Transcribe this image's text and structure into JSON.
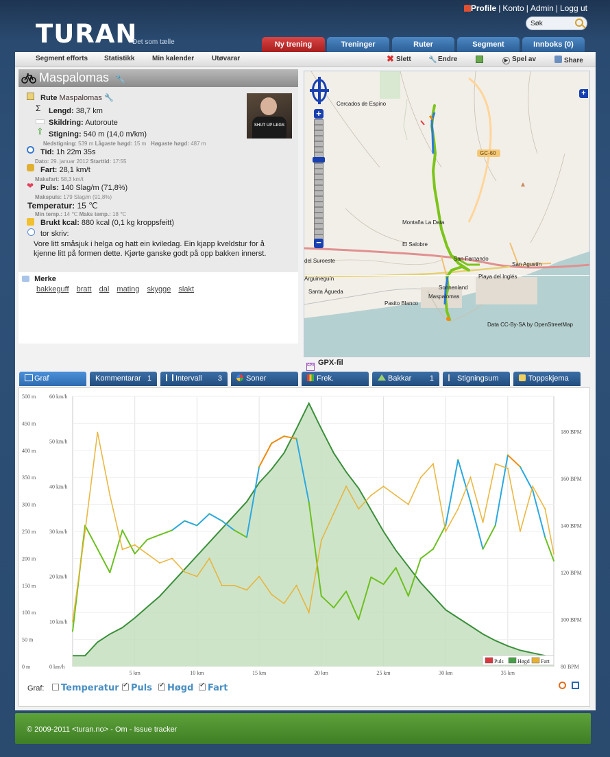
{
  "header": {
    "logo": "TURAN",
    "tagline": "Det som tælle",
    "links": [
      "Profile",
      "Konto",
      "Admin",
      "Logg ut"
    ],
    "search_placeholder": "Søk"
  },
  "main_tabs": [
    {
      "label": "Ny trening",
      "active": true
    },
    {
      "label": "Treninger",
      "active": false
    },
    {
      "label": "Ruter",
      "active": false
    },
    {
      "label": "Segment",
      "active": false
    },
    {
      "label": "Innboks (0)",
      "active": false
    }
  ],
  "subnav": {
    "items": [
      "Segment efforts",
      "Statistikk",
      "Min kalender",
      "Utøvarar"
    ],
    "actions": [
      "Slett",
      "Endre",
      "Spel av",
      "Share"
    ]
  },
  "workout": {
    "title": "Maspalomas",
    "route_label": "Rute",
    "route_name": "Maspalomas",
    "length_label": "Lengd:",
    "length": "38,7 km",
    "surface_label": "Skildring:",
    "surface": "Autoroute",
    "climb_label": "Stigning:",
    "climb": "540 m (14,0 m/km)",
    "climb_sub_label1": "Nedstigning:",
    "climb_sub_val1": "539 m",
    "climb_sub_label2": "Lågaste høgd:",
    "climb_sub_val2": "15 m",
    "climb_sub_label3": "Høgaste høgd:",
    "climb_sub_val3": "487 m",
    "time_label": "Tid:",
    "time": "1h 22m 35s",
    "date_label": "Dato:",
    "date": "29. januar 2012",
    "start_label": "Starttid:",
    "start": "17:55",
    "speed_label": "Fart:",
    "speed": "28,1 km/t",
    "maxspeed_label": "Maksfart:",
    "maxspeed": "58,3 km/t",
    "pulse_label": "Puls:",
    "pulse": "140 Slag/m (71,8%)",
    "maxpulse_label": "Makspuls:",
    "maxpulse": "179 Slag/m (91,8%)",
    "temp_label": "Temperatur:",
    "temp": "15 ℃",
    "mintemp_label": "Min temp.:",
    "mintemp": "14 ℃",
    "maxtemp_label": "Maks temp.:",
    "maxtemp": "18 ℃",
    "kcal_label": "Brukt kcal:",
    "kcal": "880 kcal (0,1 kg kroppsfeitt)",
    "author_line": "tor skriv:",
    "description": "Vore litt småsjuk i helga og hatt ein kviledag. Ein kjapp kveldstur for å kjenne litt på formen dette. Kjørte ganske godt på opp bakken innerst.",
    "avatar_shirt": "SHUT UP LEGS",
    "tags_label": "Merke",
    "tags": [
      "bakkeguff",
      "bratt",
      "dal",
      "mating",
      "skygge",
      "slakt"
    ]
  },
  "map": {
    "labels": [
      "Cercados de Espino",
      "GC-60",
      "Montaña La Data",
      "El Salobre",
      "San Fernando",
      "San Agustín",
      "Playa del Inglés",
      "Maspalomas",
      "Pasito Blanco",
      "Santa Águeda",
      "Arguineguín",
      "del Suroeste",
      "Sonnenland"
    ],
    "attribution": "Data CC-By-SA by OpenStreetMap",
    "gpx_label": "GPX-fil"
  },
  "graph_tabs": [
    {
      "label": "Graf",
      "count": ""
    },
    {
      "label": "Kommentarar",
      "count": "1"
    },
    {
      "label": "Intervall",
      "count": "3"
    },
    {
      "label": "Soner",
      "count": ""
    },
    {
      "label": "Frek.",
      "count": ""
    },
    {
      "label": "Bakkar",
      "count": "1"
    },
    {
      "label": "Stigningsum",
      "count": ""
    },
    {
      "label": "Toppskjema",
      "count": ""
    }
  ],
  "graph_controls": {
    "label": "Graf:",
    "options": [
      {
        "label": "Temperatur",
        "checked": false
      },
      {
        "label": "Puls",
        "checked": true
      },
      {
        "label": "Høgd",
        "checked": true
      },
      {
        "label": "Fart",
        "checked": true
      }
    ]
  },
  "chart_data": {
    "type": "line",
    "x_unit": "km",
    "xlim": [
      0,
      38.7
    ],
    "x_ticks": [
      "5 km",
      "10 km",
      "15 km",
      "20 km",
      "25 km",
      "30 km",
      "35 km"
    ],
    "y_left_altitude_ticks": [
      "0 m",
      "50 m",
      "100 m",
      "150 m",
      "200 m",
      "250 m",
      "300 m",
      "350 m",
      "400 m",
      "450 m",
      "500 m"
    ],
    "y_left_speed_ticks": [
      "0 km/h",
      "10 km/h",
      "20 km/h",
      "30 km/h",
      "40 km/h",
      "50 km/h",
      "60 km/h"
    ],
    "y_right_pulse_ticks": [
      "80 BPM",
      "100 BPM",
      "120 BPM",
      "140 BPM",
      "160 BPM",
      "180 BPM"
    ],
    "altitude_ylim": [
      0,
      500
    ],
    "speed_ylim": [
      0,
      60
    ],
    "pulse_ylim": [
      80,
      195
    ],
    "legend": [
      "Puls",
      "Høgd",
      "Fart"
    ],
    "legend_position": "bottom-right",
    "colors": {
      "pulse_high": "#f08a10",
      "pulse_mid": "#2aa8e0",
      "pulse_low": "#6cc020",
      "altitude_line": "#3a8f3a",
      "altitude_fill": "#c6dfc0",
      "speed": "#e8b030",
      "legend_puls": "#d8373f",
      "legend_hogd": "#46a046",
      "legend_fart": "#e8b030"
    },
    "series": [
      {
        "name": "Høgd",
        "unit": "m",
        "x": [
          0,
          1,
          2,
          3,
          4,
          5,
          6,
          7,
          8,
          9,
          10,
          11,
          12,
          13,
          14,
          15,
          16,
          17,
          18,
          19,
          20,
          21,
          22,
          23,
          24,
          25,
          26,
          27,
          28,
          29,
          30,
          31,
          32,
          33,
          34,
          35,
          36,
          37,
          38,
          38.7
        ],
        "values": [
          20,
          20,
          45,
          60,
          72,
          90,
          110,
          130,
          155,
          180,
          205,
          230,
          255,
          280,
          305,
          340,
          365,
          395,
          440,
          487,
          440,
          395,
          360,
          330,
          290,
          250,
          215,
          185,
          155,
          130,
          105,
          90,
          75,
          60,
          48,
          38,
          30,
          25,
          20,
          18
        ]
      },
      {
        "name": "Puls",
        "unit": "BPM",
        "x": [
          0,
          1,
          2,
          3,
          4,
          5,
          6,
          7,
          8,
          9,
          10,
          11,
          12,
          13,
          14,
          15,
          16,
          17,
          18,
          19,
          20,
          21,
          22,
          23,
          24,
          25,
          26,
          27,
          28,
          29,
          30,
          31,
          32,
          33,
          34,
          35,
          36,
          37,
          38,
          38.7
        ],
        "values": [
          95,
          140,
          130,
          120,
          138,
          128,
          134,
          136,
          138,
          142,
          140,
          145,
          142,
          138,
          135,
          165,
          175,
          178,
          177,
          150,
          110,
          105,
          112,
          100,
          118,
          115,
          122,
          110,
          126,
          130,
          140,
          168,
          150,
          130,
          140,
          170,
          165,
          155,
          135,
          125
        ]
      },
      {
        "name": "Fart",
        "unit": "km/h",
        "x": [
          0,
          1,
          2,
          3,
          4,
          5,
          6,
          7,
          8,
          9,
          10,
          11,
          12,
          13,
          14,
          15,
          16,
          17,
          18,
          19,
          20,
          21,
          22,
          23,
          24,
          25,
          26,
          27,
          28,
          29,
          30,
          31,
          32,
          33,
          34,
          35,
          36,
          37,
          38,
          38.7
        ],
        "values": [
          10,
          30,
          52,
          38,
          26,
          27,
          25,
          23,
          24,
          21,
          20,
          24,
          18,
          18,
          17,
          20,
          16,
          14,
          18,
          12,
          28,
          34,
          40,
          35,
          38,
          40,
          38,
          36,
          42,
          45,
          30,
          35,
          42,
          32,
          45,
          44,
          30,
          40,
          35,
          25
        ]
      }
    ]
  },
  "footer": {
    "text": "© 2009-2011 <turan.no> - Om - Issue tracker"
  }
}
